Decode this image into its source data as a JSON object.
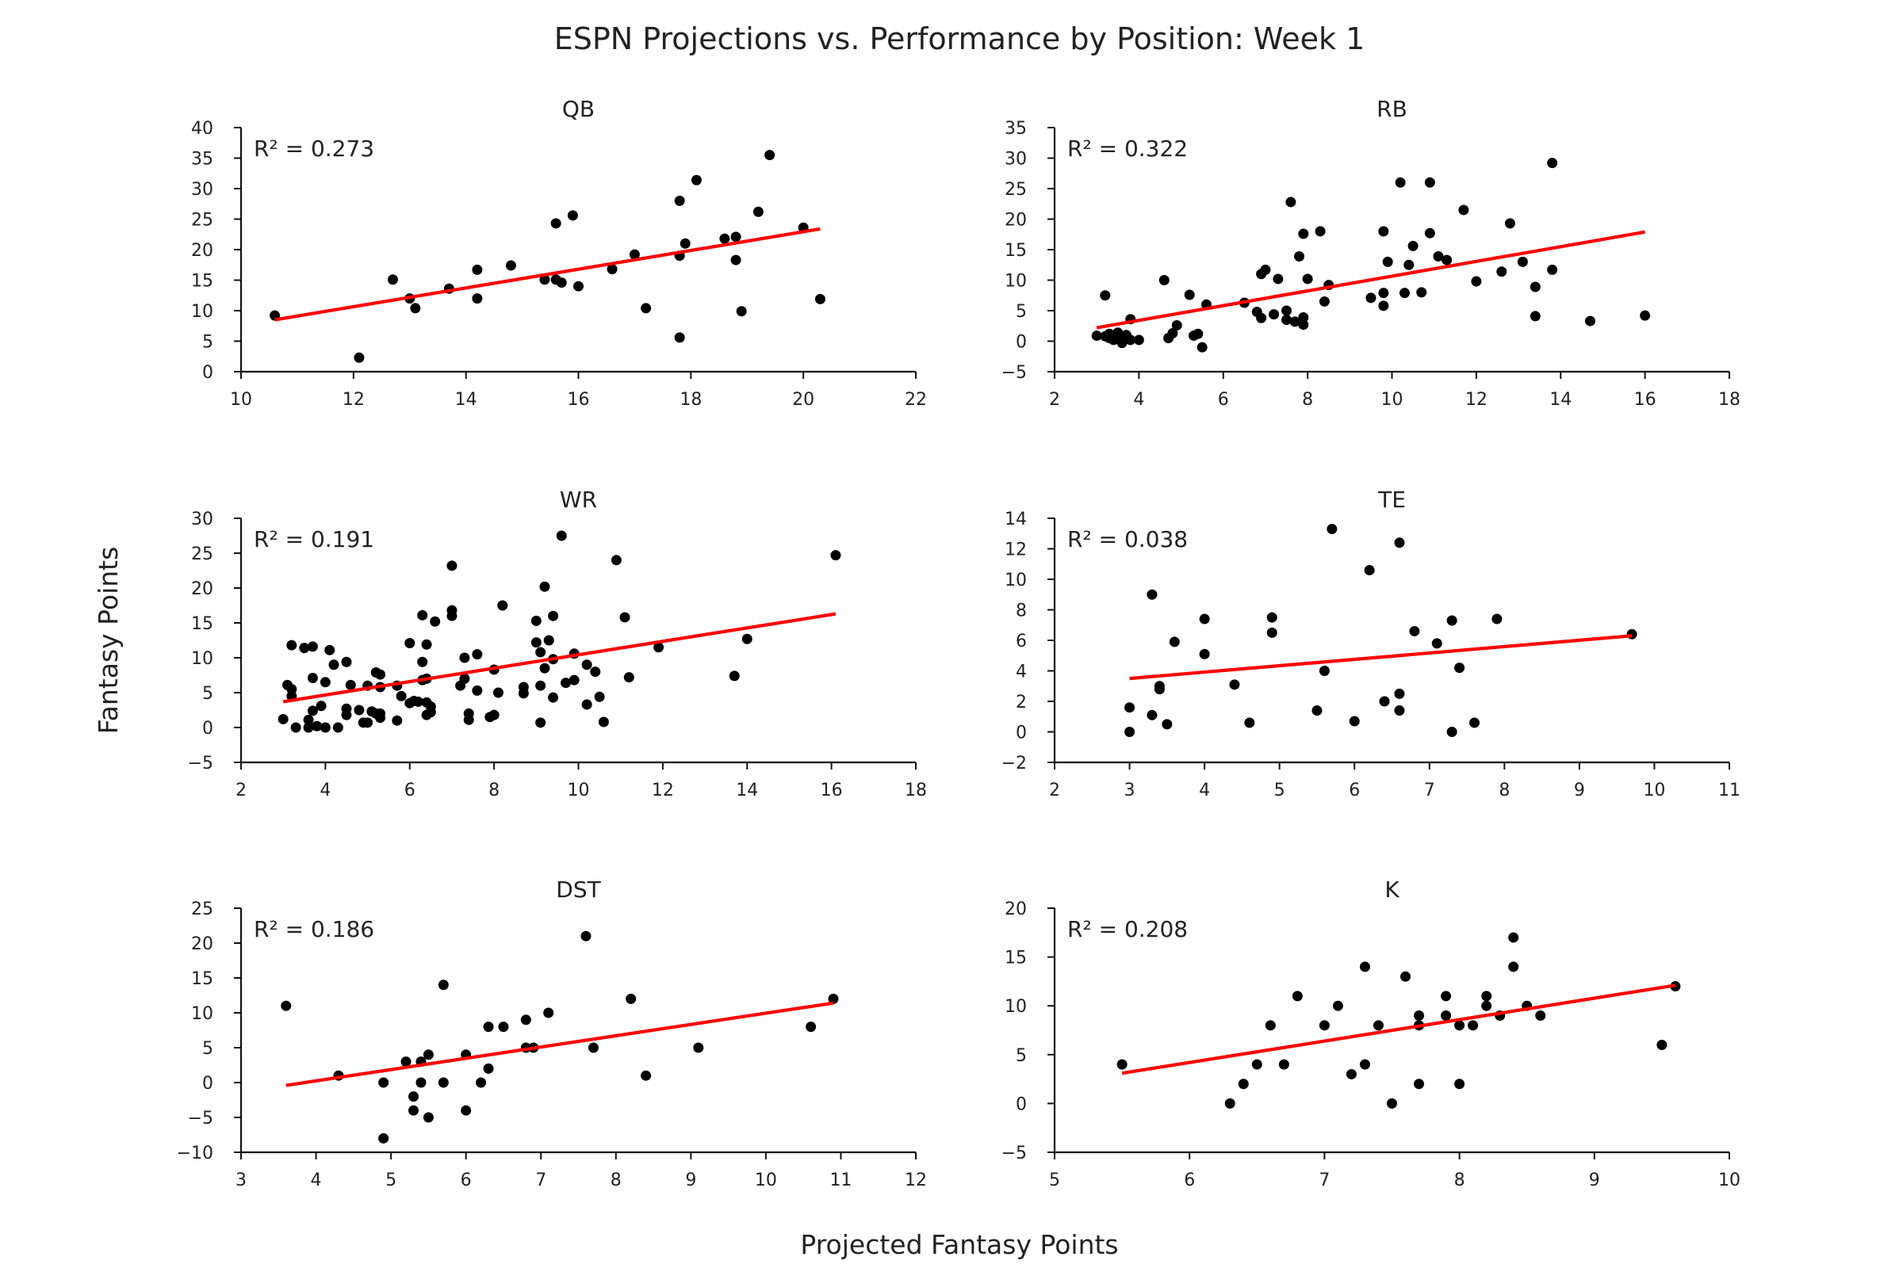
{
  "title": "ESPN Projections vs. Performance by Position: Week 1",
  "ylabel": "Fantasy Points",
  "xlabel": "Projected Fantasy Points",
  "colors": {
    "points": "#000000",
    "fit_line": "#ff0000"
  },
  "chart_data": [
    {
      "type": "scatter",
      "title": "QB",
      "r2_label": "R² = 0.273",
      "xlim": [
        10,
        22
      ],
      "ylim": [
        0,
        40
      ],
      "xticks": [
        10,
        12,
        14,
        16,
        18,
        20,
        22
      ],
      "yticks": [
        0,
        5,
        10,
        15,
        20,
        25,
        30,
        35,
        40
      ],
      "fit_line": {
        "x": [
          10.6,
          20.3
        ],
        "y": [
          8.5,
          23.4
        ]
      },
      "points": [
        [
          10.6,
          9.2
        ],
        [
          12.1,
          2.3
        ],
        [
          12.7,
          15.1
        ],
        [
          13.0,
          12.0
        ],
        [
          13.1,
          10.4
        ],
        [
          13.7,
          13.6
        ],
        [
          14.2,
          16.7
        ],
        [
          14.2,
          12.0
        ],
        [
          14.8,
          17.4
        ],
        [
          15.4,
          15.1
        ],
        [
          15.6,
          24.3
        ],
        [
          15.6,
          15.1
        ],
        [
          15.7,
          14.6
        ],
        [
          15.9,
          25.6
        ],
        [
          16.0,
          14.0
        ],
        [
          16.6,
          16.8
        ],
        [
          17.0,
          19.2
        ],
        [
          17.2,
          10.4
        ],
        [
          17.8,
          28.0
        ],
        [
          17.8,
          5.6
        ],
        [
          17.8,
          19.0
        ],
        [
          17.9,
          21.0
        ],
        [
          18.1,
          31.4
        ],
        [
          18.6,
          21.8
        ],
        [
          18.8,
          22.1
        ],
        [
          18.8,
          18.3
        ],
        [
          18.9,
          9.9
        ],
        [
          19.2,
          26.2
        ],
        [
          19.4,
          35.5
        ],
        [
          20.0,
          23.6
        ],
        [
          20.3,
          11.9
        ]
      ]
    },
    {
      "type": "scatter",
      "title": "RB",
      "r2_label": "R² = 0.322",
      "xlim": [
        2,
        18
      ],
      "ylim": [
        -5,
        35
      ],
      "xticks": [
        2,
        4,
        6,
        8,
        10,
        12,
        14,
        16,
        18
      ],
      "yticks": [
        -5,
        0,
        5,
        10,
        15,
        20,
        25,
        30,
        35
      ],
      "fit_line": {
        "x": [
          3.0,
          16.0
        ],
        "y": [
          2.2,
          17.9
        ]
      },
      "points": [
        [
          3.0,
          0.9
        ],
        [
          3.2,
          7.5
        ],
        [
          3.2,
          0.8
        ],
        [
          3.3,
          0.5
        ],
        [
          3.3,
          1.2
        ],
        [
          3.4,
          0.2
        ],
        [
          3.5,
          1.4
        ],
        [
          3.5,
          0.8
        ],
        [
          3.6,
          0.3
        ],
        [
          3.6,
          -0.3
        ],
        [
          3.7,
          1.0
        ],
        [
          3.8,
          3.6
        ],
        [
          3.8,
          0.2
        ],
        [
          4.0,
          0.2
        ],
        [
          4.6,
          10.0
        ],
        [
          4.7,
          0.5
        ],
        [
          4.8,
          1.3
        ],
        [
          4.9,
          2.6
        ],
        [
          5.2,
          7.6
        ],
        [
          5.3,
          0.9
        ],
        [
          5.4,
          1.2
        ],
        [
          5.5,
          -1.0
        ],
        [
          5.6,
          6.0
        ],
        [
          6.5,
          6.3
        ],
        [
          6.8,
          4.8
        ],
        [
          6.9,
          11.0
        ],
        [
          6.9,
          3.8
        ],
        [
          7.0,
          11.7
        ],
        [
          7.2,
          4.4
        ],
        [
          7.3,
          10.2
        ],
        [
          7.5,
          5.0
        ],
        [
          7.5,
          3.5
        ],
        [
          7.6,
          22.8
        ],
        [
          7.7,
          3.2
        ],
        [
          7.8,
          13.9
        ],
        [
          7.9,
          17.6
        ],
        [
          7.9,
          3.9
        ],
        [
          7.9,
          2.7
        ],
        [
          8.0,
          10.2
        ],
        [
          8.3,
          18.0
        ],
        [
          8.4,
          6.5
        ],
        [
          8.5,
          9.2
        ],
        [
          9.5,
          7.1
        ],
        [
          9.8,
          18.0
        ],
        [
          9.8,
          5.8
        ],
        [
          9.8,
          7.9
        ],
        [
          9.9,
          13.0
        ],
        [
          10.2,
          26.0
        ],
        [
          10.3,
          7.9
        ],
        [
          10.4,
          12.5
        ],
        [
          10.5,
          15.6
        ],
        [
          10.7,
          8.0
        ],
        [
          10.9,
          26.0
        ],
        [
          10.9,
          17.7
        ],
        [
          11.1,
          13.9
        ],
        [
          11.3,
          13.3
        ],
        [
          11.7,
          21.5
        ],
        [
          12.0,
          9.8
        ],
        [
          12.6,
          11.4
        ],
        [
          12.8,
          19.3
        ],
        [
          13.1,
          13.0
        ],
        [
          13.4,
          4.1
        ],
        [
          13.4,
          8.9
        ],
        [
          13.8,
          11.7
        ],
        [
          13.8,
          29.2
        ],
        [
          14.7,
          3.3
        ],
        [
          16.0,
          4.2
        ]
      ]
    },
    {
      "type": "scatter",
      "title": "WR",
      "r2_label": "R² = 0.191",
      "xlim": [
        2,
        18
      ],
      "ylim": [
        -5,
        30
      ],
      "xticks": [
        2,
        4,
        6,
        8,
        10,
        12,
        14,
        16,
        18
      ],
      "yticks": [
        -5,
        0,
        5,
        10,
        15,
        20,
        25,
        30
      ],
      "fit_line": {
        "x": [
          3.0,
          16.1
        ],
        "y": [
          3.7,
          16.3
        ]
      },
      "points": [
        [
          3.0,
          1.2
        ],
        [
          3.1,
          6.1
        ],
        [
          3.2,
          11.8
        ],
        [
          3.2,
          5.5
        ],
        [
          3.2,
          4.5
        ],
        [
          3.3,
          0.0
        ],
        [
          3.5,
          11.4
        ],
        [
          3.6,
          0.0
        ],
        [
          3.6,
          1.1
        ],
        [
          3.7,
          2.4
        ],
        [
          3.7,
          11.6
        ],
        [
          3.7,
          7.1
        ],
        [
          3.8,
          0.2
        ],
        [
          3.9,
          3.1
        ],
        [
          4.0,
          6.5
        ],
        [
          4.0,
          0.0
        ],
        [
          4.1,
          11.1
        ],
        [
          4.2,
          9.0
        ],
        [
          4.3,
          0.0
        ],
        [
          4.5,
          1.8
        ],
        [
          4.5,
          9.4
        ],
        [
          4.5,
          2.7
        ],
        [
          4.6,
          6.1
        ],
        [
          4.8,
          2.5
        ],
        [
          4.9,
          0.7
        ],
        [
          5.0,
          0.7
        ],
        [
          5.0,
          6.0
        ],
        [
          5.1,
          2.3
        ],
        [
          5.2,
          2.0
        ],
        [
          5.2,
          7.9
        ],
        [
          5.3,
          7.6
        ],
        [
          5.3,
          2.0
        ],
        [
          5.3,
          1.4
        ],
        [
          5.3,
          5.8
        ],
        [
          5.7,
          1.0
        ],
        [
          5.7,
          6.0
        ],
        [
          5.8,
          4.5
        ],
        [
          6.0,
          3.5
        ],
        [
          6.0,
          12.1
        ],
        [
          6.1,
          3.8
        ],
        [
          6.2,
          3.7
        ],
        [
          6.3,
          16.1
        ],
        [
          6.3,
          6.8
        ],
        [
          6.3,
          9.4
        ],
        [
          6.4,
          11.9
        ],
        [
          6.4,
          7.0
        ],
        [
          6.4,
          3.6
        ],
        [
          6.4,
          1.8
        ],
        [
          6.5,
          3.0
        ],
        [
          6.5,
          2.2
        ],
        [
          6.6,
          15.2
        ],
        [
          7.0,
          23.2
        ],
        [
          7.0,
          16.8
        ],
        [
          7.0,
          16.0
        ],
        [
          7.2,
          6.0
        ],
        [
          7.3,
          10.0
        ],
        [
          7.3,
          7.0
        ],
        [
          7.4,
          1.1
        ],
        [
          7.4,
          2.0
        ],
        [
          7.6,
          5.3
        ],
        [
          7.6,
          10.5
        ],
        [
          7.9,
          1.5
        ],
        [
          8.0,
          1.8
        ],
        [
          8.0,
          8.3
        ],
        [
          8.1,
          5.0
        ],
        [
          8.2,
          17.5
        ],
        [
          8.7,
          5.8
        ],
        [
          8.7,
          4.9
        ],
        [
          9.0,
          12.2
        ],
        [
          9.0,
          15.3
        ],
        [
          9.1,
          10.8
        ],
        [
          9.1,
          6.0
        ],
        [
          9.1,
          0.7
        ],
        [
          9.2,
          20.2
        ],
        [
          9.2,
          8.5
        ],
        [
          9.3,
          12.5
        ],
        [
          9.4,
          4.3
        ],
        [
          9.4,
          9.8
        ],
        [
          9.4,
          16.0
        ],
        [
          9.6,
          27.5
        ],
        [
          9.7,
          6.4
        ],
        [
          9.9,
          6.8
        ],
        [
          9.9,
          10.6
        ],
        [
          10.2,
          9.0
        ],
        [
          10.2,
          3.3
        ],
        [
          10.4,
          8.0
        ],
        [
          10.5,
          4.4
        ],
        [
          10.6,
          0.8
        ],
        [
          10.9,
          24.0
        ],
        [
          11.1,
          15.8
        ],
        [
          11.2,
          7.2
        ],
        [
          11.9,
          11.5
        ],
        [
          13.7,
          7.4
        ],
        [
          14.0,
          12.7
        ],
        [
          16.1,
          24.7
        ]
      ]
    },
    {
      "type": "scatter",
      "title": "TE",
      "r2_label": "R² = 0.038",
      "xlim": [
        2,
        11
      ],
      "ylim": [
        -2,
        14
      ],
      "xticks": [
        2,
        3,
        4,
        5,
        6,
        7,
        8,
        9,
        10,
        11
      ],
      "yticks": [
        -2,
        0,
        2,
        4,
        6,
        8,
        10,
        12,
        14
      ],
      "fit_line": {
        "x": [
          3.0,
          9.7
        ],
        "y": [
          3.5,
          6.3
        ]
      },
      "points": [
        [
          3.0,
          0.0
        ],
        [
          3.0,
          1.6
        ],
        [
          3.3,
          9.0
        ],
        [
          3.3,
          1.1
        ],
        [
          3.4,
          2.8
        ],
        [
          3.4,
          3.0
        ],
        [
          3.5,
          0.5
        ],
        [
          3.6,
          5.9
        ],
        [
          4.0,
          7.4
        ],
        [
          4.0,
          5.1
        ],
        [
          4.4,
          3.1
        ],
        [
          4.6,
          0.6
        ],
        [
          4.9,
          7.5
        ],
        [
          4.9,
          6.5
        ],
        [
          5.5,
          1.4
        ],
        [
          5.6,
          4.0
        ],
        [
          5.7,
          13.3
        ],
        [
          6.0,
          0.7
        ],
        [
          6.2,
          10.6
        ],
        [
          6.4,
          2.0
        ],
        [
          6.6,
          12.4
        ],
        [
          6.6,
          1.4
        ],
        [
          6.6,
          2.5
        ],
        [
          6.8,
          6.6
        ],
        [
          7.1,
          5.8
        ],
        [
          7.3,
          7.3
        ],
        [
          7.3,
          0.0
        ],
        [
          7.4,
          4.2
        ],
        [
          7.6,
          0.6
        ],
        [
          7.9,
          7.4
        ],
        [
          9.7,
          6.4
        ]
      ]
    },
    {
      "type": "scatter",
      "title": "DST",
      "r2_label": "R² = 0.186",
      "xlim": [
        3,
        12
      ],
      "ylim": [
        -10,
        25
      ],
      "xticks": [
        3,
        4,
        5,
        6,
        7,
        8,
        9,
        10,
        11,
        12
      ],
      "yticks": [
        -10,
        -5,
        0,
        5,
        10,
        15,
        20,
        25
      ],
      "fit_line": {
        "x": [
          3.6,
          10.9
        ],
        "y": [
          -0.4,
          11.4
        ]
      },
      "points": [
        [
          3.6,
          11.0
        ],
        [
          4.3,
          1.0
        ],
        [
          4.9,
          0.0
        ],
        [
          4.9,
          -8.0
        ],
        [
          5.2,
          3.0
        ],
        [
          5.3,
          -2.0
        ],
        [
          5.3,
          -4.0
        ],
        [
          5.4,
          3.0
        ],
        [
          5.4,
          0.0
        ],
        [
          5.5,
          4.0
        ],
        [
          5.5,
          -5.0
        ],
        [
          5.7,
          14.0
        ],
        [
          5.7,
          0.0
        ],
        [
          6.0,
          4.0
        ],
        [
          6.0,
          -4.0
        ],
        [
          6.2,
          0.0
        ],
        [
          6.3,
          8.0
        ],
        [
          6.3,
          2.0
        ],
        [
          6.5,
          8.0
        ],
        [
          6.8,
          9.0
        ],
        [
          6.8,
          5.0
        ],
        [
          6.9,
          5.0
        ],
        [
          7.1,
          10.0
        ],
        [
          7.6,
          21.0
        ],
        [
          7.7,
          5.0
        ],
        [
          8.2,
          12.0
        ],
        [
          8.4,
          1.0
        ],
        [
          9.1,
          5.0
        ],
        [
          10.6,
          8.0
        ],
        [
          10.9,
          12.0
        ]
      ]
    },
    {
      "type": "scatter",
      "title": "K",
      "r2_label": "R² = 0.208",
      "xlim": [
        5,
        10
      ],
      "ylim": [
        -5,
        20
      ],
      "xticks": [
        5,
        6,
        7,
        8,
        9,
        10
      ],
      "yticks": [
        -5,
        0,
        5,
        10,
        15,
        20
      ],
      "fit_line": {
        "x": [
          5.5,
          9.6
        ],
        "y": [
          3.1,
          12.1
        ]
      },
      "points": [
        [
          5.5,
          4.0
        ],
        [
          6.3,
          0.0
        ],
        [
          6.4,
          2.0
        ],
        [
          6.5,
          4.0
        ],
        [
          6.6,
          8.0
        ],
        [
          6.7,
          4.0
        ],
        [
          6.8,
          11.0
        ],
        [
          7.0,
          8.0
        ],
        [
          7.1,
          10.0
        ],
        [
          7.2,
          3.0
        ],
        [
          7.3,
          4.0
        ],
        [
          7.3,
          14.0
        ],
        [
          7.4,
          8.0
        ],
        [
          7.5,
          0.0
        ],
        [
          7.6,
          13.0
        ],
        [
          7.7,
          9.0
        ],
        [
          7.7,
          8.0
        ],
        [
          7.7,
          2.0
        ],
        [
          7.9,
          11.0
        ],
        [
          7.9,
          9.0
        ],
        [
          8.0,
          8.0
        ],
        [
          8.0,
          2.0
        ],
        [
          8.1,
          8.0
        ],
        [
          8.2,
          11.0
        ],
        [
          8.2,
          10.0
        ],
        [
          8.3,
          9.0
        ],
        [
          8.4,
          17.0
        ],
        [
          8.4,
          14.0
        ],
        [
          8.5,
          10.0
        ],
        [
          8.6,
          9.0
        ],
        [
          9.5,
          6.0
        ],
        [
          9.6,
          12.0
        ]
      ]
    }
  ]
}
